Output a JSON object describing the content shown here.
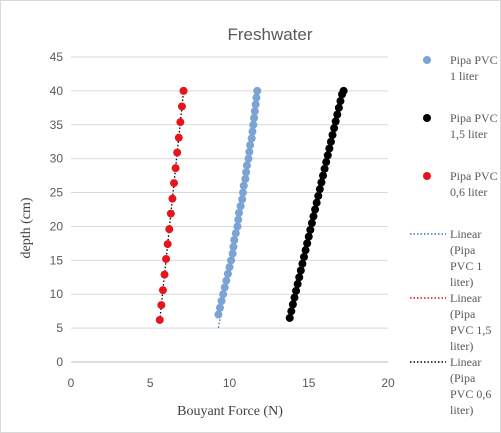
{
  "chart_data": {
    "type": "scatter",
    "title": "Freshwater",
    "xlabel": "Bouyant Force (N)",
    "ylabel": "depth  (cm)",
    "xlim": [
      0,
      20
    ],
    "ylim": [
      0,
      45
    ],
    "x_ticks": [
      "0",
      "5",
      "10",
      "15",
      "20"
    ],
    "y_ticks": [
      "0",
      "5",
      "10",
      "15",
      "20",
      "25",
      "30",
      "35",
      "40",
      "45"
    ],
    "grid": "horizontal",
    "legend_position": "right",
    "legend": [
      {
        "lines": [
          "Pipa PVC",
          "1 liter"
        ],
        "kind": "marker",
        "color": "#7ba3d3"
      },
      {
        "lines": [
          "Pipa PVC",
          "1,5 liter"
        ],
        "kind": "marker",
        "color": "#000000"
      },
      {
        "lines": [
          "Pipa PVC",
          "0,6 liter"
        ],
        "kind": "marker",
        "color": "#e8141b"
      },
      {
        "lines": [
          "Linear",
          "(Pipa",
          "PVC 1",
          "liter)"
        ],
        "kind": "line",
        "color": "#2e75b6"
      },
      {
        "lines": [
          "Linear",
          "(Pipa",
          "PVC 1,5",
          "liter)"
        ],
        "kind": "line",
        "color": "#ff0000"
      },
      {
        "lines": [
          "Linear",
          "(Pipa",
          "PVC 0,6",
          "liter)"
        ],
        "kind": "line",
        "color": "#000000"
      }
    ],
    "series": [
      {
        "color": "#7ba3d3",
        "points": [
          [
            9.3,
            7.0
          ],
          [
            9.4,
            8.0
          ],
          [
            9.5,
            9.0
          ],
          [
            9.6,
            10.0
          ],
          [
            9.7,
            11.0
          ],
          [
            9.8,
            12.0
          ],
          [
            9.9,
            13.0
          ],
          [
            10.0,
            14.0
          ],
          [
            10.1,
            15.0
          ],
          [
            10.2,
            16.0
          ],
          [
            10.25,
            17.0
          ],
          [
            10.3,
            18.0
          ],
          [
            10.4,
            19.0
          ],
          [
            10.5,
            20.0
          ],
          [
            10.55,
            21.0
          ],
          [
            10.6,
            22.0
          ],
          [
            10.7,
            23.0
          ],
          [
            10.8,
            24.0
          ],
          [
            10.85,
            25.0
          ],
          [
            10.9,
            26.0
          ],
          [
            11.0,
            27.0
          ],
          [
            11.05,
            28.0
          ],
          [
            11.1,
            29.0
          ],
          [
            11.2,
            30.0
          ],
          [
            11.25,
            31.0
          ],
          [
            11.3,
            32.0
          ],
          [
            11.4,
            33.0
          ],
          [
            11.45,
            34.0
          ],
          [
            11.5,
            35.0
          ],
          [
            11.55,
            36.0
          ],
          [
            11.6,
            37.0
          ],
          [
            11.65,
            38.0
          ],
          [
            11.7,
            39.0
          ],
          [
            11.75,
            40.0
          ]
        ]
      },
      {
        "color": "#000000",
        "points": [
          [
            13.8,
            6.5
          ],
          [
            13.9,
            7.5
          ],
          [
            14.0,
            8.5
          ],
          [
            14.1,
            9.5
          ],
          [
            14.2,
            10.5
          ],
          [
            14.3,
            11.5
          ],
          [
            14.4,
            12.5
          ],
          [
            14.5,
            13.5
          ],
          [
            14.6,
            14.5
          ],
          [
            14.7,
            15.5
          ],
          [
            14.8,
            16.5
          ],
          [
            14.9,
            17.5
          ],
          [
            15.0,
            18.5
          ],
          [
            15.1,
            19.5
          ],
          [
            15.2,
            20.5
          ],
          [
            15.3,
            21.5
          ],
          [
            15.4,
            22.5
          ],
          [
            15.5,
            23.5
          ],
          [
            15.6,
            24.5
          ],
          [
            15.7,
            25.5
          ],
          [
            15.8,
            26.5
          ],
          [
            15.9,
            27.5
          ],
          [
            16.0,
            28.5
          ],
          [
            16.1,
            29.5
          ],
          [
            16.2,
            30.5
          ],
          [
            16.3,
            31.5
          ],
          [
            16.4,
            32.5
          ],
          [
            16.5,
            33.5
          ],
          [
            16.6,
            34.5
          ],
          [
            16.7,
            35.5
          ],
          [
            16.8,
            36.5
          ],
          [
            16.9,
            37.5
          ],
          [
            17.0,
            38.5
          ],
          [
            17.1,
            39.5
          ],
          [
            17.2,
            40.0
          ]
        ]
      },
      {
        "color": "#e8141b",
        "points": [
          [
            5.6,
            6.2
          ],
          [
            5.7,
            8.4
          ],
          [
            5.8,
            10.6
          ],
          [
            5.9,
            12.9
          ],
          [
            6.0,
            15.2
          ],
          [
            6.1,
            17.4
          ],
          [
            6.2,
            19.6
          ],
          [
            6.3,
            21.9
          ],
          [
            6.4,
            24.1
          ],
          [
            6.5,
            26.4
          ],
          [
            6.6,
            28.6
          ],
          [
            6.7,
            30.9
          ],
          [
            6.8,
            33.1
          ],
          [
            6.9,
            35.4
          ],
          [
            7.0,
            37.7
          ],
          [
            7.1,
            40.0
          ]
        ]
      }
    ]
  }
}
